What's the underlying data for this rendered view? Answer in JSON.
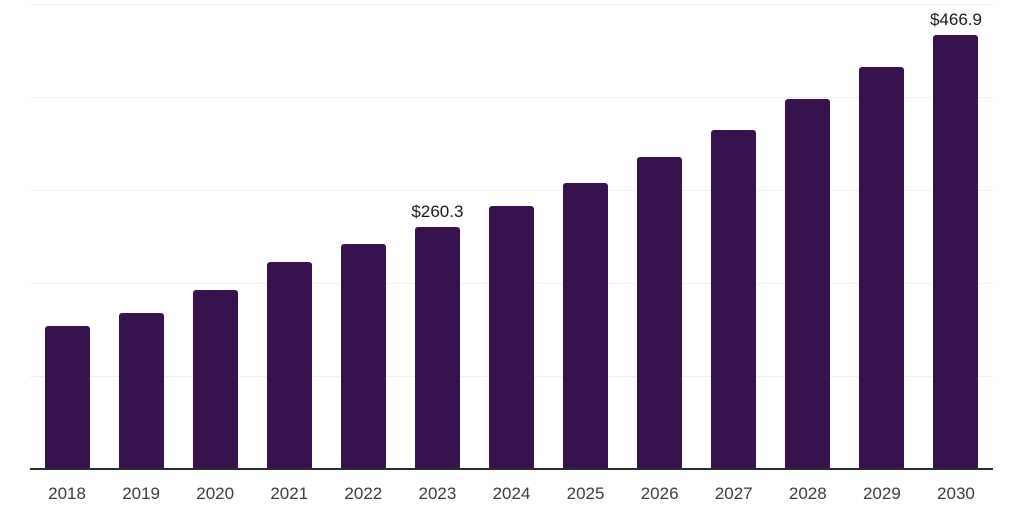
{
  "chart_data": {
    "type": "bar",
    "title": "",
    "xlabel": "",
    "ylabel": "",
    "categories": [
      "2018",
      "2019",
      "2020",
      "2021",
      "2022",
      "2023",
      "2024",
      "2025",
      "2026",
      "2027",
      "2028",
      "2029",
      "2030"
    ],
    "values": [
      154,
      168,
      193,
      223,
      242,
      260.3,
      283,
      308,
      335,
      365,
      398,
      432,
      466.9
    ],
    "data_labels": {
      "2023": "$260.3",
      "2030": "$466.9"
    },
    "ylim": [
      0,
      500
    ],
    "gridline_values": [
      100,
      200,
      300,
      400,
      500
    ],
    "grid": true,
    "y_axis_labels_visible": false,
    "legend": "none",
    "colors": {
      "bar": "#38124F",
      "grid_line": "#F0F0F0",
      "axis_line": "#2B2B2B",
      "tick_label": "#3D3D3D",
      "data_label": "#1A1A1A",
      "background": "#FFFFFF"
    }
  }
}
